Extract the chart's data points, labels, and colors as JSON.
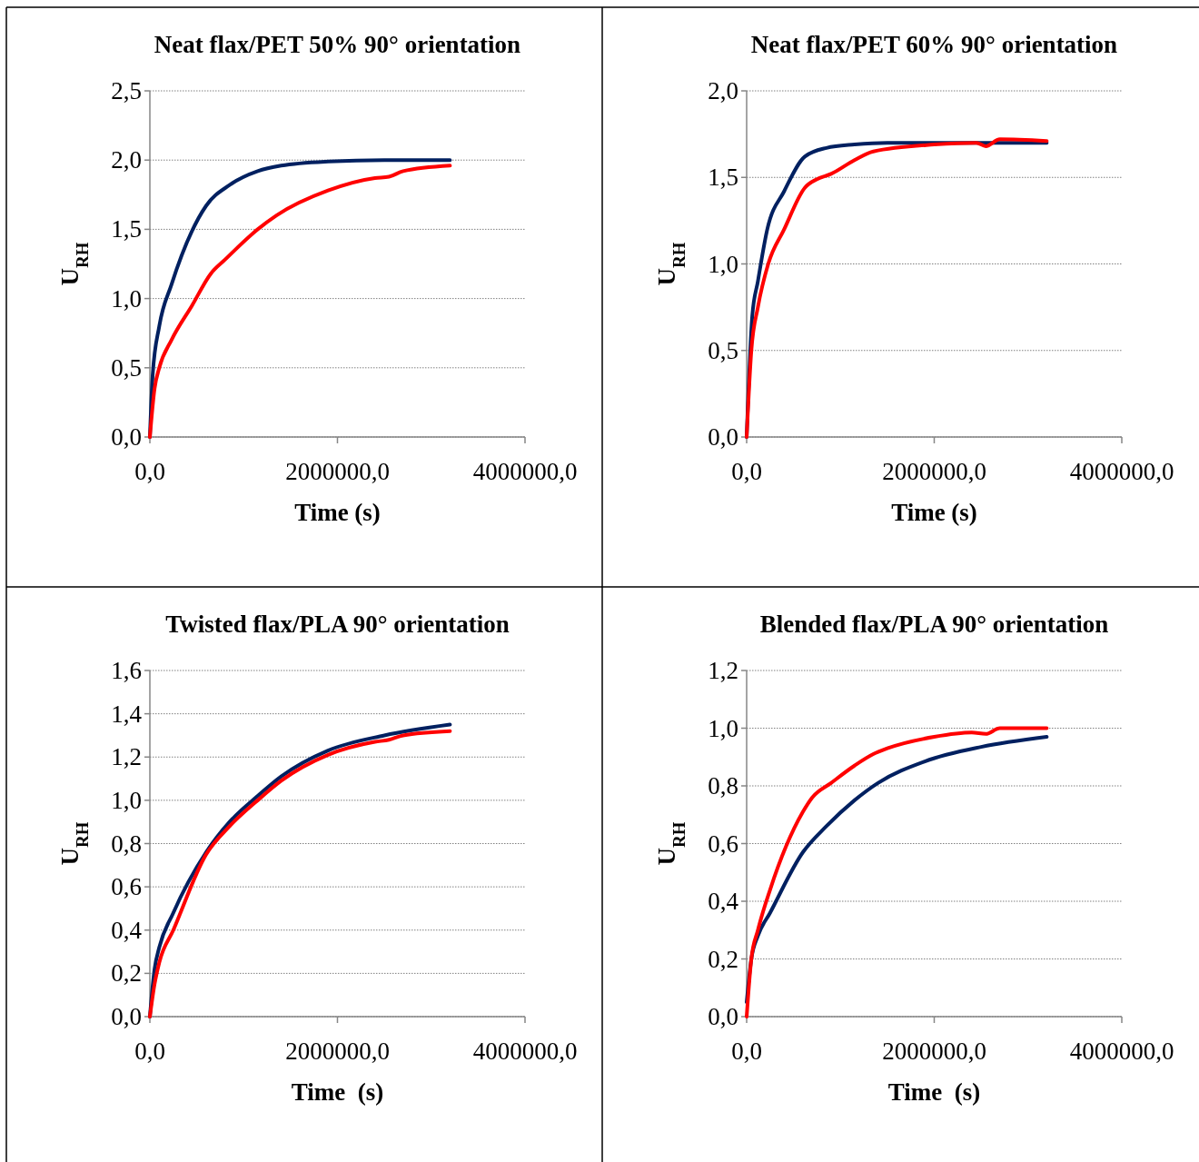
{
  "chart_data": [
    {
      "type": "line",
      "title": "Neat flax/PET 50% 90° orientation",
      "xlabel": "Time (s)",
      "ylabel": "U$_{RH}$",
      "xlim": [
        0,
        4000000
      ],
      "ylim": [
        0,
        2.5
      ],
      "xticks": [
        {
          "value": 0,
          "label": "0,0"
        },
        {
          "value": 2000000,
          "label": "2000000,0"
        },
        {
          "value": 4000000,
          "label": "4000000,0"
        }
      ],
      "yticks": [
        {
          "value": 0,
          "label": "0,0"
        },
        {
          "value": 0.5,
          "label": "0,5"
        },
        {
          "value": 1,
          "label": "1,0"
        },
        {
          "value": 1.5,
          "label": "1,5"
        },
        {
          "value": 2,
          "label": "2,0"
        },
        {
          "value": 2.5,
          "label": "2,5"
        }
      ],
      "grid": "y",
      "marker": "none",
      "line_style": "solid",
      "series": [
        {
          "color": "#002060",
          "x": [
            0,
            30000,
            100000,
            230000,
            600000,
            850000,
            1150000,
            1400000,
            1900000,
            2500000,
            3200000
          ],
          "values": [
            0,
            0.45,
            0.8,
            1.1,
            1.67,
            1.82,
            1.92,
            1.96,
            1.99,
            2.0,
            2.0
          ]
        },
        {
          "color": "#ff0000",
          "x": [
            0,
            50000,
            100000,
            230000,
            450000,
            650000,
            800000,
            1150000,
            1350000,
            1900000,
            2400000,
            2550000,
            2700000,
            3200000
          ],
          "values": [
            0,
            0.35,
            0.5,
            0.7,
            0.95,
            1.18,
            1.28,
            1.5,
            1.6,
            1.78,
            1.87,
            1.88,
            1.92,
            1.96
          ]
        }
      ]
    },
    {
      "type": "line",
      "title": "Neat flax/PET 60% 90° orientation",
      "xlabel": "Time (s)",
      "ylabel": "U$_{RH}$",
      "xlim": [
        0,
        4000000
      ],
      "ylim": [
        0,
        2.0
      ],
      "xticks": [
        {
          "value": 0,
          "label": "0,0"
        },
        {
          "value": 2000000,
          "label": "2000000,0"
        },
        {
          "value": 4000000,
          "label": "4000000,0"
        }
      ],
      "yticks": [
        {
          "value": 0,
          "label": "0,0"
        },
        {
          "value": 0.5,
          "label": "0,5"
        },
        {
          "value": 1,
          "label": "1,0"
        },
        {
          "value": 1.5,
          "label": "1,5"
        },
        {
          "value": 2,
          "label": "2,0"
        }
      ],
      "grid": "y",
      "marker": "none",
      "line_style": "solid",
      "series": [
        {
          "color": "#002060",
          "x": [
            0,
            60000,
            120000,
            220000,
            400000,
            620000,
            850000,
            1150000,
            1500000,
            3200000
          ],
          "values": [
            0,
            0.7,
            0.9,
            1.2,
            1.42,
            1.62,
            1.67,
            1.69,
            1.7,
            1.7
          ]
        },
        {
          "color": "#ff0000",
          "x": [
            0,
            50000,
            120000,
            230000,
            400000,
            620000,
            750000,
            900000,
            1150000,
            1350000,
            2000000,
            2450000,
            2550000,
            2700000,
            3200000
          ],
          "values": [
            0,
            0.5,
            0.75,
            1.0,
            1.2,
            1.44,
            1.49,
            1.52,
            1.6,
            1.65,
            1.69,
            1.7,
            1.68,
            1.72,
            1.71
          ]
        }
      ]
    },
    {
      "type": "line",
      "title": "Twisted flax/PLA 90° orientation",
      "xlabel": "Time  (s)",
      "ylabel": "U$_{RH}$",
      "xlim": [
        0,
        4000000
      ],
      "ylim": [
        0,
        1.6
      ],
      "xticks": [
        {
          "value": 0,
          "label": "0,0"
        },
        {
          "value": 2000000,
          "label": "2000000,0"
        },
        {
          "value": 4000000,
          "label": "4000000,0"
        }
      ],
      "yticks": [
        {
          "value": 0,
          "label": "0,0"
        },
        {
          "value": 0.2,
          "label": "0,2"
        },
        {
          "value": 0.4,
          "label": "0,4"
        },
        {
          "value": 0.6,
          "label": "0,6"
        },
        {
          "value": 0.8,
          "label": "0,8"
        },
        {
          "value": 1,
          "label": "1,0"
        },
        {
          "value": 1.2,
          "label": "1,2"
        },
        {
          "value": 1.4,
          "label": "1,4"
        },
        {
          "value": 1.6,
          "label": "1,6"
        }
      ],
      "grid": "y",
      "marker": "none",
      "line_style": "solid",
      "series": [
        {
          "color": "#002060",
          "x": [
            0,
            50000,
            100000,
            250000,
            600000,
            850000,
            1150000,
            1400000,
            1900000,
            2500000,
            3200000
          ],
          "values": [
            0,
            0.22,
            0.32,
            0.48,
            0.76,
            0.9,
            1.02,
            1.11,
            1.23,
            1.3,
            1.35
          ]
        },
        {
          "color": "#ff0000",
          "x": [
            0,
            50000,
            100000,
            250000,
            600000,
            850000,
            1150000,
            1400000,
            1900000,
            2400000,
            2550000,
            2700000,
            3200000
          ],
          "values": [
            0,
            0.15,
            0.25,
            0.4,
            0.75,
            0.88,
            1.0,
            1.09,
            1.21,
            1.27,
            1.28,
            1.3,
            1.32
          ]
        }
      ]
    },
    {
      "type": "line",
      "title": "Blended flax/PLA 90° orientation",
      "xlabel": "Time  (s)",
      "ylabel": "U$_{RH}$",
      "xlim": [
        0,
        4000000
      ],
      "ylim": [
        0,
        1.2
      ],
      "xticks": [
        {
          "value": 0,
          "label": "0,0"
        },
        {
          "value": 2000000,
          "label": "2000000,0"
        },
        {
          "value": 4000000,
          "label": "4000000,0"
        }
      ],
      "yticks": [
        {
          "value": 0,
          "label": "0,0"
        },
        {
          "value": 0.2,
          "label": "0,2"
        },
        {
          "value": 0.4,
          "label": "0,4"
        },
        {
          "value": 0.6,
          "label": "0,6"
        },
        {
          "value": 0.8,
          "label": "0,8"
        },
        {
          "value": 1,
          "label": "1,0"
        },
        {
          "value": 1.2,
          "label": "1,2"
        }
      ],
      "grid": "y",
      "marker": "none",
      "line_style": "solid",
      "series": [
        {
          "color": "#002060",
          "x": [
            0,
            50000,
            120000,
            250000,
            600000,
            850000,
            1150000,
            1400000,
            1900000,
            2500000,
            3200000
          ],
          "values": [
            0.05,
            0.2,
            0.28,
            0.36,
            0.57,
            0.66,
            0.75,
            0.81,
            0.885,
            0.935,
            0.97
          ]
        },
        {
          "color": "#ff0000",
          "x": [
            0,
            50000,
            120000,
            250000,
            600000,
            700000,
            900000,
            1150000,
            1350000,
            1500000,
            2000000,
            2400000,
            2550000,
            2700000,
            3200000
          ],
          "values": [
            0,
            0.2,
            0.3,
            0.44,
            0.71,
            0.76,
            0.81,
            0.87,
            0.91,
            0.93,
            0.97,
            0.985,
            0.98,
            1.0,
            1.0
          ]
        }
      ]
    }
  ]
}
